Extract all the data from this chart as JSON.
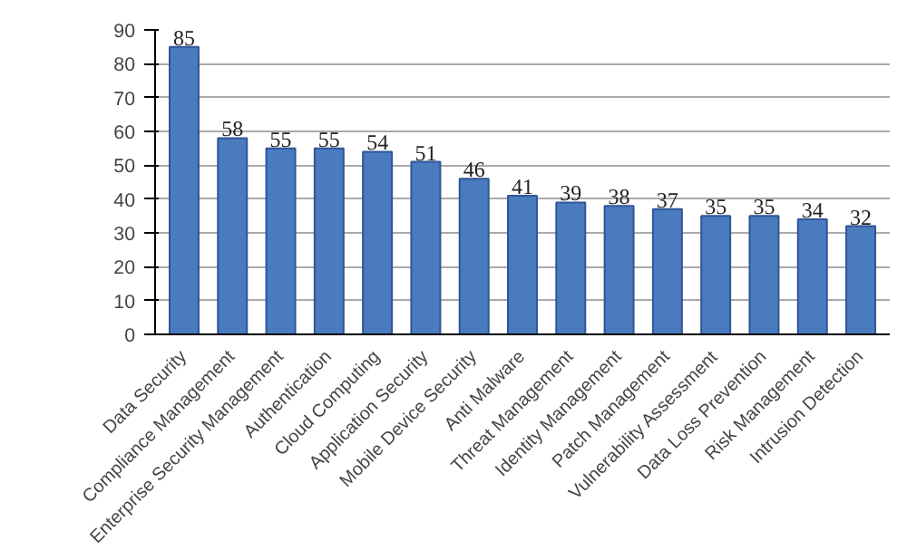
{
  "chart_data": {
    "type": "bar",
    "categories": [
      "Data Security",
      "Compliance Management",
      "Enterprise Security Management",
      "Authentication",
      "Cloud Computing",
      "Application Security",
      "Mobile Device Security",
      "Anti Malware",
      "Threat Management",
      "Identity Management",
      "Patch Management",
      "Vulnerability Assessment",
      "Data Loss Prevention",
      "Risk Management",
      "Intrusion Detection"
    ],
    "values": [
      85,
      58,
      55,
      55,
      54,
      51,
      46,
      41,
      39,
      38,
      37,
      35,
      35,
      34,
      32
    ],
    "color": "#4a7bbf",
    "ylim": [
      0,
      90
    ],
    "yticks": [
      0,
      10,
      20,
      30,
      40,
      50,
      60,
      70,
      80,
      90
    ],
    "grid": "y",
    "data_labels": true
  }
}
